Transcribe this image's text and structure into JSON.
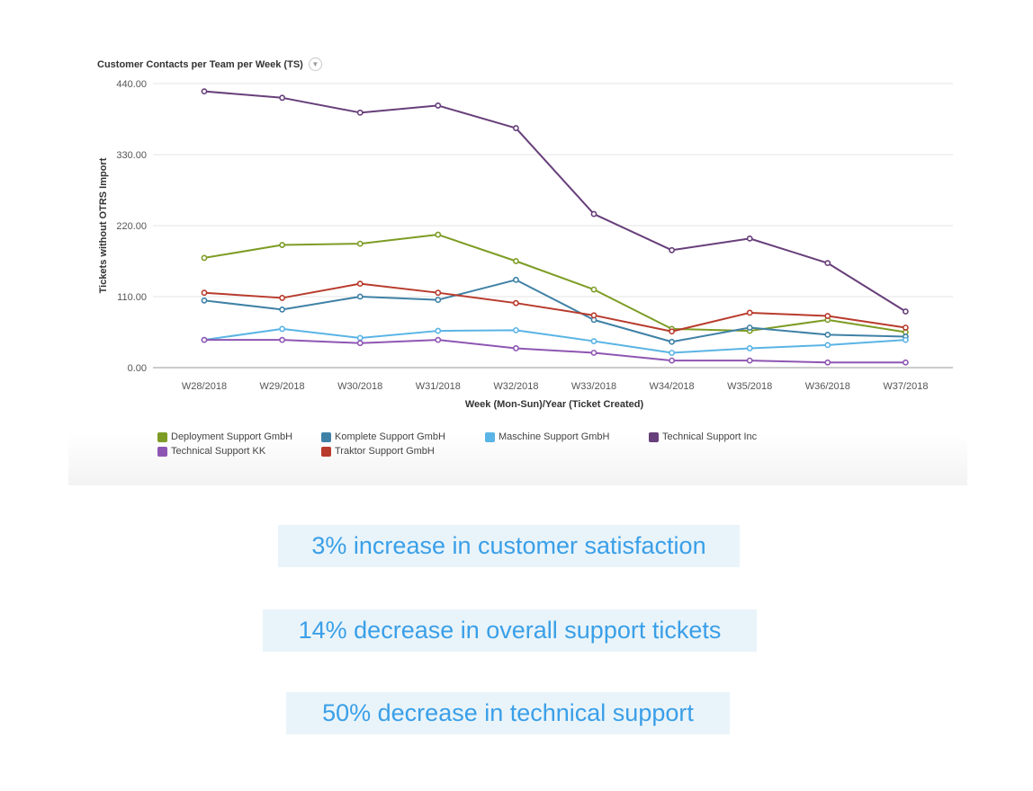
{
  "chart_data": {
    "type": "line",
    "title": "Customer Contacts per Team per Week (TS)",
    "xlabel": "Week (Mon-Sun)/Year (Ticket Created)",
    "ylabel": "Tickets without OTRS Import",
    "ylim": [
      0,
      440
    ],
    "yticks": [
      "0.00",
      "110.00",
      "220.00",
      "330.00",
      "440.00"
    ],
    "grid": true,
    "legend_position": "bottom-left",
    "categories": [
      "W28/2018",
      "W29/2018",
      "W30/2018",
      "W31/2018",
      "W32/2018",
      "W33/2018",
      "W34/2018",
      "W35/2018",
      "W36/2018",
      "W37/2018"
    ],
    "series": [
      {
        "name": "Deployment Support GmbH",
        "color": "#7d9c25",
        "values": [
          170,
          190,
          192,
          206,
          165,
          121,
          60,
          57,
          74,
          55
        ]
      },
      {
        "name": "Komplete Support GmbH",
        "color": "#3f81a6",
        "values": [
          104,
          90,
          110,
          105,
          136,
          74,
          40,
          62,
          51,
          48
        ]
      },
      {
        "name": "Maschine Support GmbH",
        "color": "#5ab4e5",
        "values": [
          43,
          60,
          46,
          57,
          58,
          41,
          23,
          30,
          35,
          43
        ]
      },
      {
        "name": "Technical Support Inc",
        "color": "#673f7a",
        "values": [
          428,
          418,
          395,
          406,
          371,
          238,
          182,
          200,
          162,
          87
        ]
      },
      {
        "name": "Technical Support KK",
        "color": "#8e56b3",
        "values": [
          43,
          43,
          38,
          43,
          30,
          23,
          11,
          11,
          8,
          8
        ]
      },
      {
        "name": "Traktor Support GmbH",
        "color": "#b83b2d",
        "values": [
          116,
          108,
          130,
          116,
          100,
          81,
          56,
          85,
          80,
          62
        ]
      }
    ]
  },
  "stats": {
    "satisfaction": "3% increase in customer satisfaction",
    "tickets": "14% decrease in overall support tickets",
    "technical": "50% decrease in technical support"
  }
}
